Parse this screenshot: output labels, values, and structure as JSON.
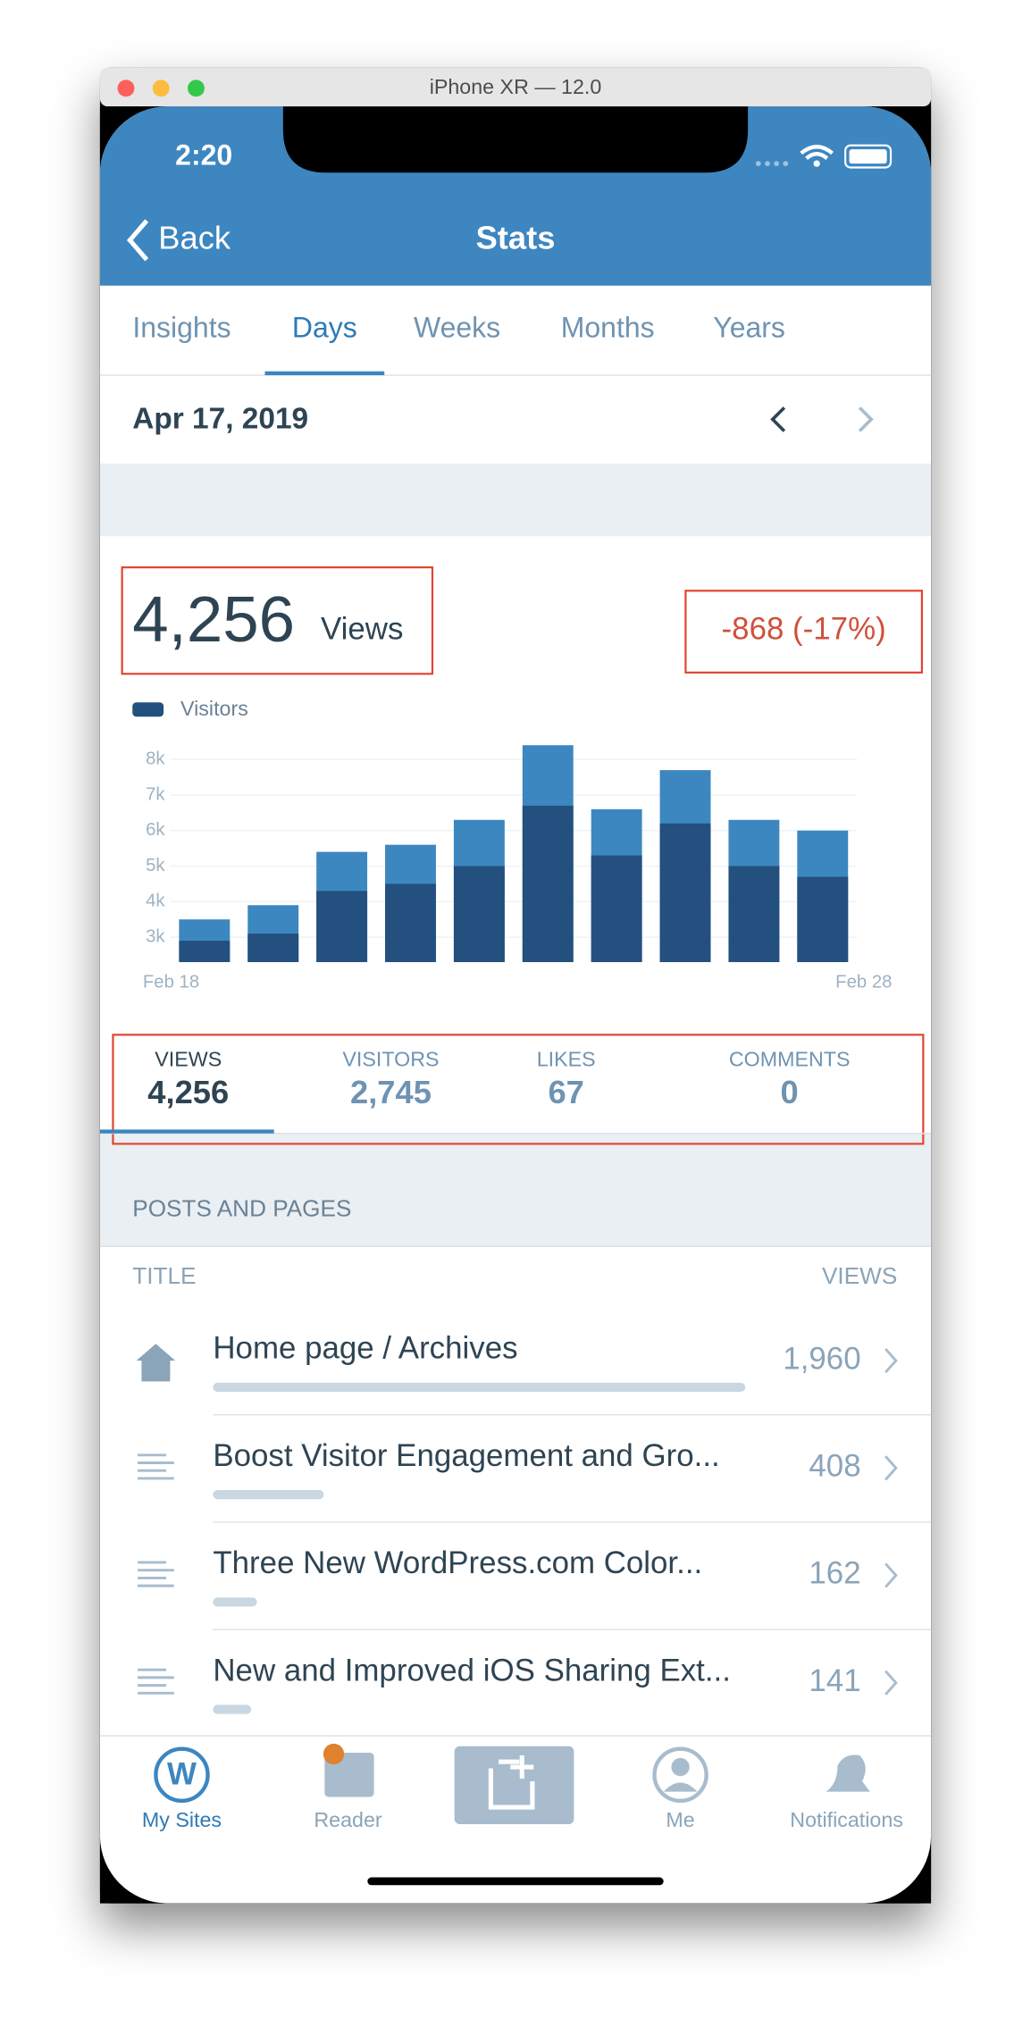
{
  "window_title": "iPhone XR — 12.0",
  "status_bar": {
    "time": "2:20"
  },
  "nav": {
    "back": "Back",
    "title": "Stats"
  },
  "period_tabs": [
    "Insights",
    "Days",
    "Weeks",
    "Months",
    "Years"
  ],
  "date": "Apr 17, 2019",
  "summary": {
    "value": "4,256",
    "label": "Views",
    "change": "-868 (-17%)"
  },
  "chart_data": {
    "type": "bar",
    "grid": true,
    "categories": [
      "Feb 18",
      null,
      null,
      null,
      null,
      null,
      null,
      null,
      null,
      "Feb 28"
    ],
    "series": [
      {
        "color": "#3c87bf",
        "values": [
          3500,
          3900,
          5400,
          5600,
          6300,
          8400,
          6600,
          7700,
          6300,
          6000
        ]
      },
      {
        "name": "Visitors",
        "color": "#23507e",
        "values": [
          2900,
          3100,
          4300,
          4500,
          5000,
          6700,
          5300,
          6200,
          5000,
          4700
        ]
      }
    ],
    "ylim": [
      2300,
      8400
    ],
    "yticks": [
      {
        "value": 3000,
        "label": "3k"
      },
      {
        "value": 4000,
        "label": "4k"
      },
      {
        "value": 5000,
        "label": "5k"
      },
      {
        "value": 6000,
        "label": "6k"
      },
      {
        "value": 7000,
        "label": "7k"
      },
      {
        "value": 8000,
        "label": "8k"
      }
    ]
  },
  "stat_tabs": [
    {
      "label": "VIEWS",
      "value": "4,256"
    },
    {
      "label": "VISITORS",
      "value": "2,745"
    },
    {
      "label": "LIKES",
      "value": "67"
    },
    {
      "label": "COMMENTS",
      "value": "0"
    }
  ],
  "posts": {
    "title": "POSTS AND PAGES",
    "columns": [
      "TITLE",
      "VIEWS"
    ],
    "rows": [
      {
        "title": "Home page / Archives",
        "views": 1960,
        "views_label": "1,960"
      },
      {
        "title": "Boost Visitor Engagement and Gro...",
        "views": 408,
        "views_label": "408"
      },
      {
        "title": "Three New WordPress.com Color...",
        "views": 162,
        "views_label": "162"
      },
      {
        "title": "New and Improved iOS Sharing Ext...",
        "views": 141,
        "views_label": "141"
      }
    ]
  },
  "tab_bar": [
    "My Sites",
    "Reader",
    "Me",
    "Notifications"
  ]
}
